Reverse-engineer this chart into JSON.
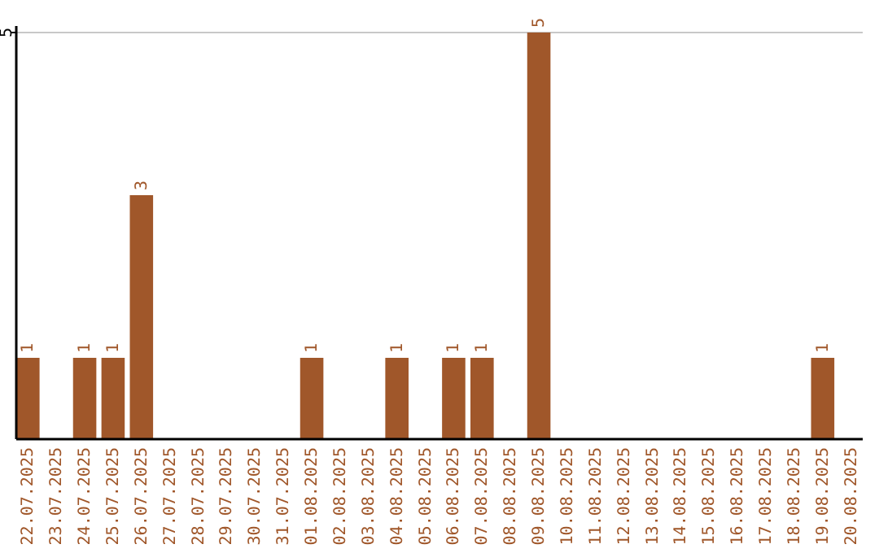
{
  "chart_data": {
    "type": "bar",
    "categories": [
      "22.07.2025",
      "23.07.2025",
      "24.07.2025",
      "25.07.2025",
      "26.07.2025",
      "27.07.2025",
      "28.07.2025",
      "29.07.2025",
      "30.07.2025",
      "31.07.2025",
      "01.08.2025",
      "02.08.2025",
      "03.08.2025",
      "04.08.2025",
      "05.08.2025",
      "06.08.2025",
      "07.08.2025",
      "08.08.2025",
      "09.08.2025",
      "10.08.2025",
      "11.08.2025",
      "12.08.2025",
      "13.08.2025",
      "14.08.2025",
      "15.08.2025",
      "16.08.2025",
      "17.08.2025",
      "18.08.2025",
      "19.08.2025",
      "20.08.2025"
    ],
    "values": [
      1,
      null,
      1,
      1,
      3,
      null,
      null,
      null,
      null,
      null,
      1,
      null,
      null,
      1,
      null,
      1,
      1,
      null,
      5,
      null,
      null,
      null,
      null,
      null,
      null,
      null,
      null,
      null,
      1,
      null
    ],
    "color": "#a0572a",
    "ylim": [
      0,
      5
    ],
    "yticks": [
      5
    ],
    "ref_lines": [
      {
        "axis": "y",
        "value": 5,
        "color": "#c8c8c8"
      }
    ],
    "data_labels": true
  }
}
